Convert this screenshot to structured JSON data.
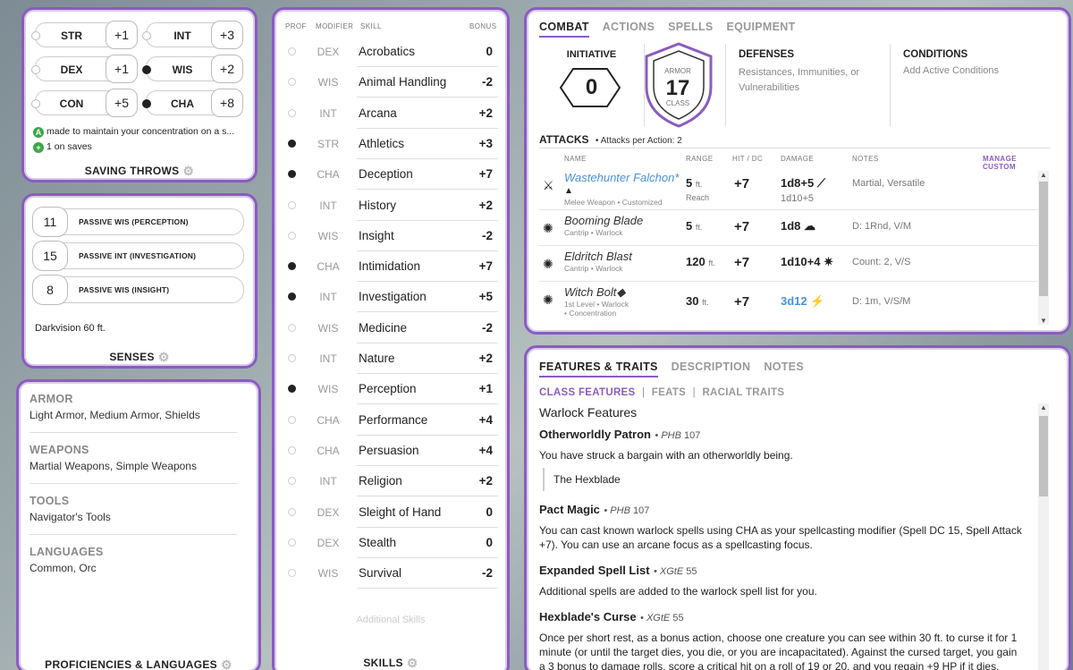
{
  "saving_throws": {
    "rows": [
      {
        "name": "STR",
        "value": "+1",
        "prof": false
      },
      {
        "name": "INT",
        "value": "+3",
        "prof": false
      },
      {
        "name": "DEX",
        "value": "+1",
        "prof": false
      },
      {
        "name": "WIS",
        "value": "+2",
        "prof": true
      },
      {
        "name": "CON",
        "value": "+5",
        "prof": false
      },
      {
        "name": "CHA",
        "value": "+8",
        "prof": true
      }
    ],
    "note1": "made to maintain your concentration on a s...",
    "note2": "1 on saves",
    "note1_badge": "A",
    "note2_badge": "+",
    "title": "SAVING THROWS"
  },
  "senses": {
    "rows": [
      {
        "value": "11",
        "label": "PASSIVE WIS (PERCEPTION)"
      },
      {
        "value": "15",
        "label": "PASSIVE INT (INVESTIGATION)"
      },
      {
        "value": "8",
        "label": "PASSIVE WIS (INSIGHT)"
      }
    ],
    "darkvision": "Darkvision 60 ft.",
    "title": "SENSES"
  },
  "proficiencies": {
    "sections": [
      {
        "head": "ARMOR",
        "text": "Light Armor, Medium Armor, Shields"
      },
      {
        "head": "WEAPONS",
        "text": "Martial Weapons, Simple Weapons"
      },
      {
        "head": "TOOLS",
        "text": "Navigator's Tools"
      },
      {
        "head": "LANGUAGES",
        "text": "Common, Orc"
      }
    ],
    "title": "PROFICIENCIES & LANGUAGES"
  },
  "skills": {
    "headers": {
      "prof": "PROF",
      "modifier": "MODIFIER",
      "skill": "SKILL",
      "bonus": "BONUS"
    },
    "rows": [
      {
        "mod": "DEX",
        "name": "Acrobatics",
        "bonus": "0",
        "prof": false
      },
      {
        "mod": "WIS",
        "name": "Animal Handling",
        "bonus": "-2",
        "prof": false
      },
      {
        "mod": "INT",
        "name": "Arcana",
        "bonus": "+2",
        "prof": false
      },
      {
        "mod": "STR",
        "name": "Athletics",
        "bonus": "+3",
        "prof": true
      },
      {
        "mod": "CHA",
        "name": "Deception",
        "bonus": "+7",
        "prof": true
      },
      {
        "mod": "INT",
        "name": "History",
        "bonus": "+2",
        "prof": false
      },
      {
        "mod": "WIS",
        "name": "Insight",
        "bonus": "-2",
        "prof": false
      },
      {
        "mod": "CHA",
        "name": "Intimidation",
        "bonus": "+7",
        "prof": true
      },
      {
        "mod": "INT",
        "name": "Investigation",
        "bonus": "+5",
        "prof": true
      },
      {
        "mod": "WIS",
        "name": "Medicine",
        "bonus": "-2",
        "prof": false
      },
      {
        "mod": "INT",
        "name": "Nature",
        "bonus": "+2",
        "prof": false
      },
      {
        "mod": "WIS",
        "name": "Perception",
        "bonus": "+1",
        "prof": true
      },
      {
        "mod": "CHA",
        "name": "Performance",
        "bonus": "+4",
        "prof": false
      },
      {
        "mod": "CHA",
        "name": "Persuasion",
        "bonus": "+4",
        "prof": false
      },
      {
        "mod": "INT",
        "name": "Religion",
        "bonus": "+2",
        "prof": false
      },
      {
        "mod": "DEX",
        "name": "Sleight of Hand",
        "bonus": "0",
        "prof": false
      },
      {
        "mod": "DEX",
        "name": "Stealth",
        "bonus": "0",
        "prof": false
      },
      {
        "mod": "WIS",
        "name": "Survival",
        "bonus": "-2",
        "prof": false
      }
    ],
    "additional": "Additional Skills",
    "title": "SKILLS"
  },
  "combat": {
    "tabs": [
      "COMBAT",
      "ACTIONS",
      "SPELLS",
      "EQUIPMENT"
    ],
    "initiative_label": "INITIATIVE",
    "initiative_value": "0",
    "armor_label": "ARMOR",
    "armor_value": "17",
    "class_label": "CLASS",
    "defenses_title": "DEFENSES",
    "defenses_text": "Resistances, Immunities, or Vulnerabilities",
    "conditions_title": "CONDITIONS",
    "conditions_text": "Add Active Conditions",
    "attacks_title": "ATTACKS",
    "attacks_per_action": "Attacks per Action: 2",
    "manage_custom": "MANAGE CUSTOM",
    "attack_headers": {
      "name": "NAME",
      "range": "RANGE",
      "hit": "HIT / DC",
      "damage": "DAMAGE",
      "notes": "NOTES"
    },
    "attacks": [
      {
        "name": "Wastehunter Falchon*",
        "sub": "Melee Weapon • Customized",
        "range": "5",
        "range_unit": "ft.",
        "range_sub": "Reach",
        "hit": "+7",
        "damage": "1d8+5",
        "damage2": "1d10+5",
        "notes": "Martial, Versatile"
      },
      {
        "name": "Booming Blade",
        "sub": "Cantrip • Warlock",
        "range": "5",
        "range_unit": "ft.",
        "range_sub": "",
        "hit": "+7",
        "damage": "1d8",
        "damage2": "",
        "notes": "D: 1Rnd, V/M"
      },
      {
        "name": "Eldritch Blast",
        "sub": "Cantrip • Warlock",
        "range": "120",
        "range_unit": "ft.",
        "range_sub": "",
        "hit": "+7",
        "damage": "1d10+4",
        "damage2": "",
        "notes": "Count: 2, V/S"
      },
      {
        "name": "Witch Bolt",
        "sub": "1st Level • Warlock",
        "sub2": "• Concentration",
        "range": "30",
        "range_unit": "ft.",
        "range_sub": "",
        "hit": "+7",
        "damage": "3d12",
        "damage2": "",
        "notes": "D: 1m, V/S/M"
      }
    ],
    "falchion_badge": "▲",
    "witch_bolt_mark": "◆"
  },
  "features": {
    "tabs": [
      "FEATURES & TRAITS",
      "DESCRIPTION",
      "NOTES"
    ],
    "subtabs": [
      "CLASS FEATURES",
      "FEATS",
      "RACIAL TRAITS"
    ],
    "section": "Warlock Features",
    "items": [
      {
        "title": "Otherworldly Patron",
        "src": "PHB",
        "page": "107",
        "text": "You have struck a bargain with an otherworldly being.",
        "choice": "The Hexblade"
      },
      {
        "title": "Pact Magic",
        "src": "PHB",
        "page": "107",
        "text": "You can cast known warlock spells using CHA as your spellcasting modifier (Spell DC 15, Spell Attack +7). You can use an arcane focus as a spellcasting focus."
      },
      {
        "title": "Expanded Spell List",
        "src": "XGtE",
        "page": "55",
        "text": "Additional spells are added to the warlock spell list for you."
      },
      {
        "title": "Hexblade's Curse",
        "src": "XGtE",
        "page": "55",
        "text": "Once per short rest, as a bonus action, choose one creature you can see within 30 ft. to curse it for 1 minute (or until the target dies, you die, or you are incapacitated). Against the cursed target, you gain a 3 bonus to damage rolls, score a critical hit on a roll of 19 or 20, and you regain +9 HP if it dies."
      }
    ]
  },
  "colors": {
    "accent": "#8a5cc0",
    "link": "#4a90d9",
    "green": "#3ea64a"
  },
  "icons": [
    "gear-icon",
    "sword-icon",
    "spell-icon",
    "lightning-icon",
    "explosion-icon",
    "cloud-icon",
    "scroll-up-icon",
    "scroll-down-icon"
  ]
}
